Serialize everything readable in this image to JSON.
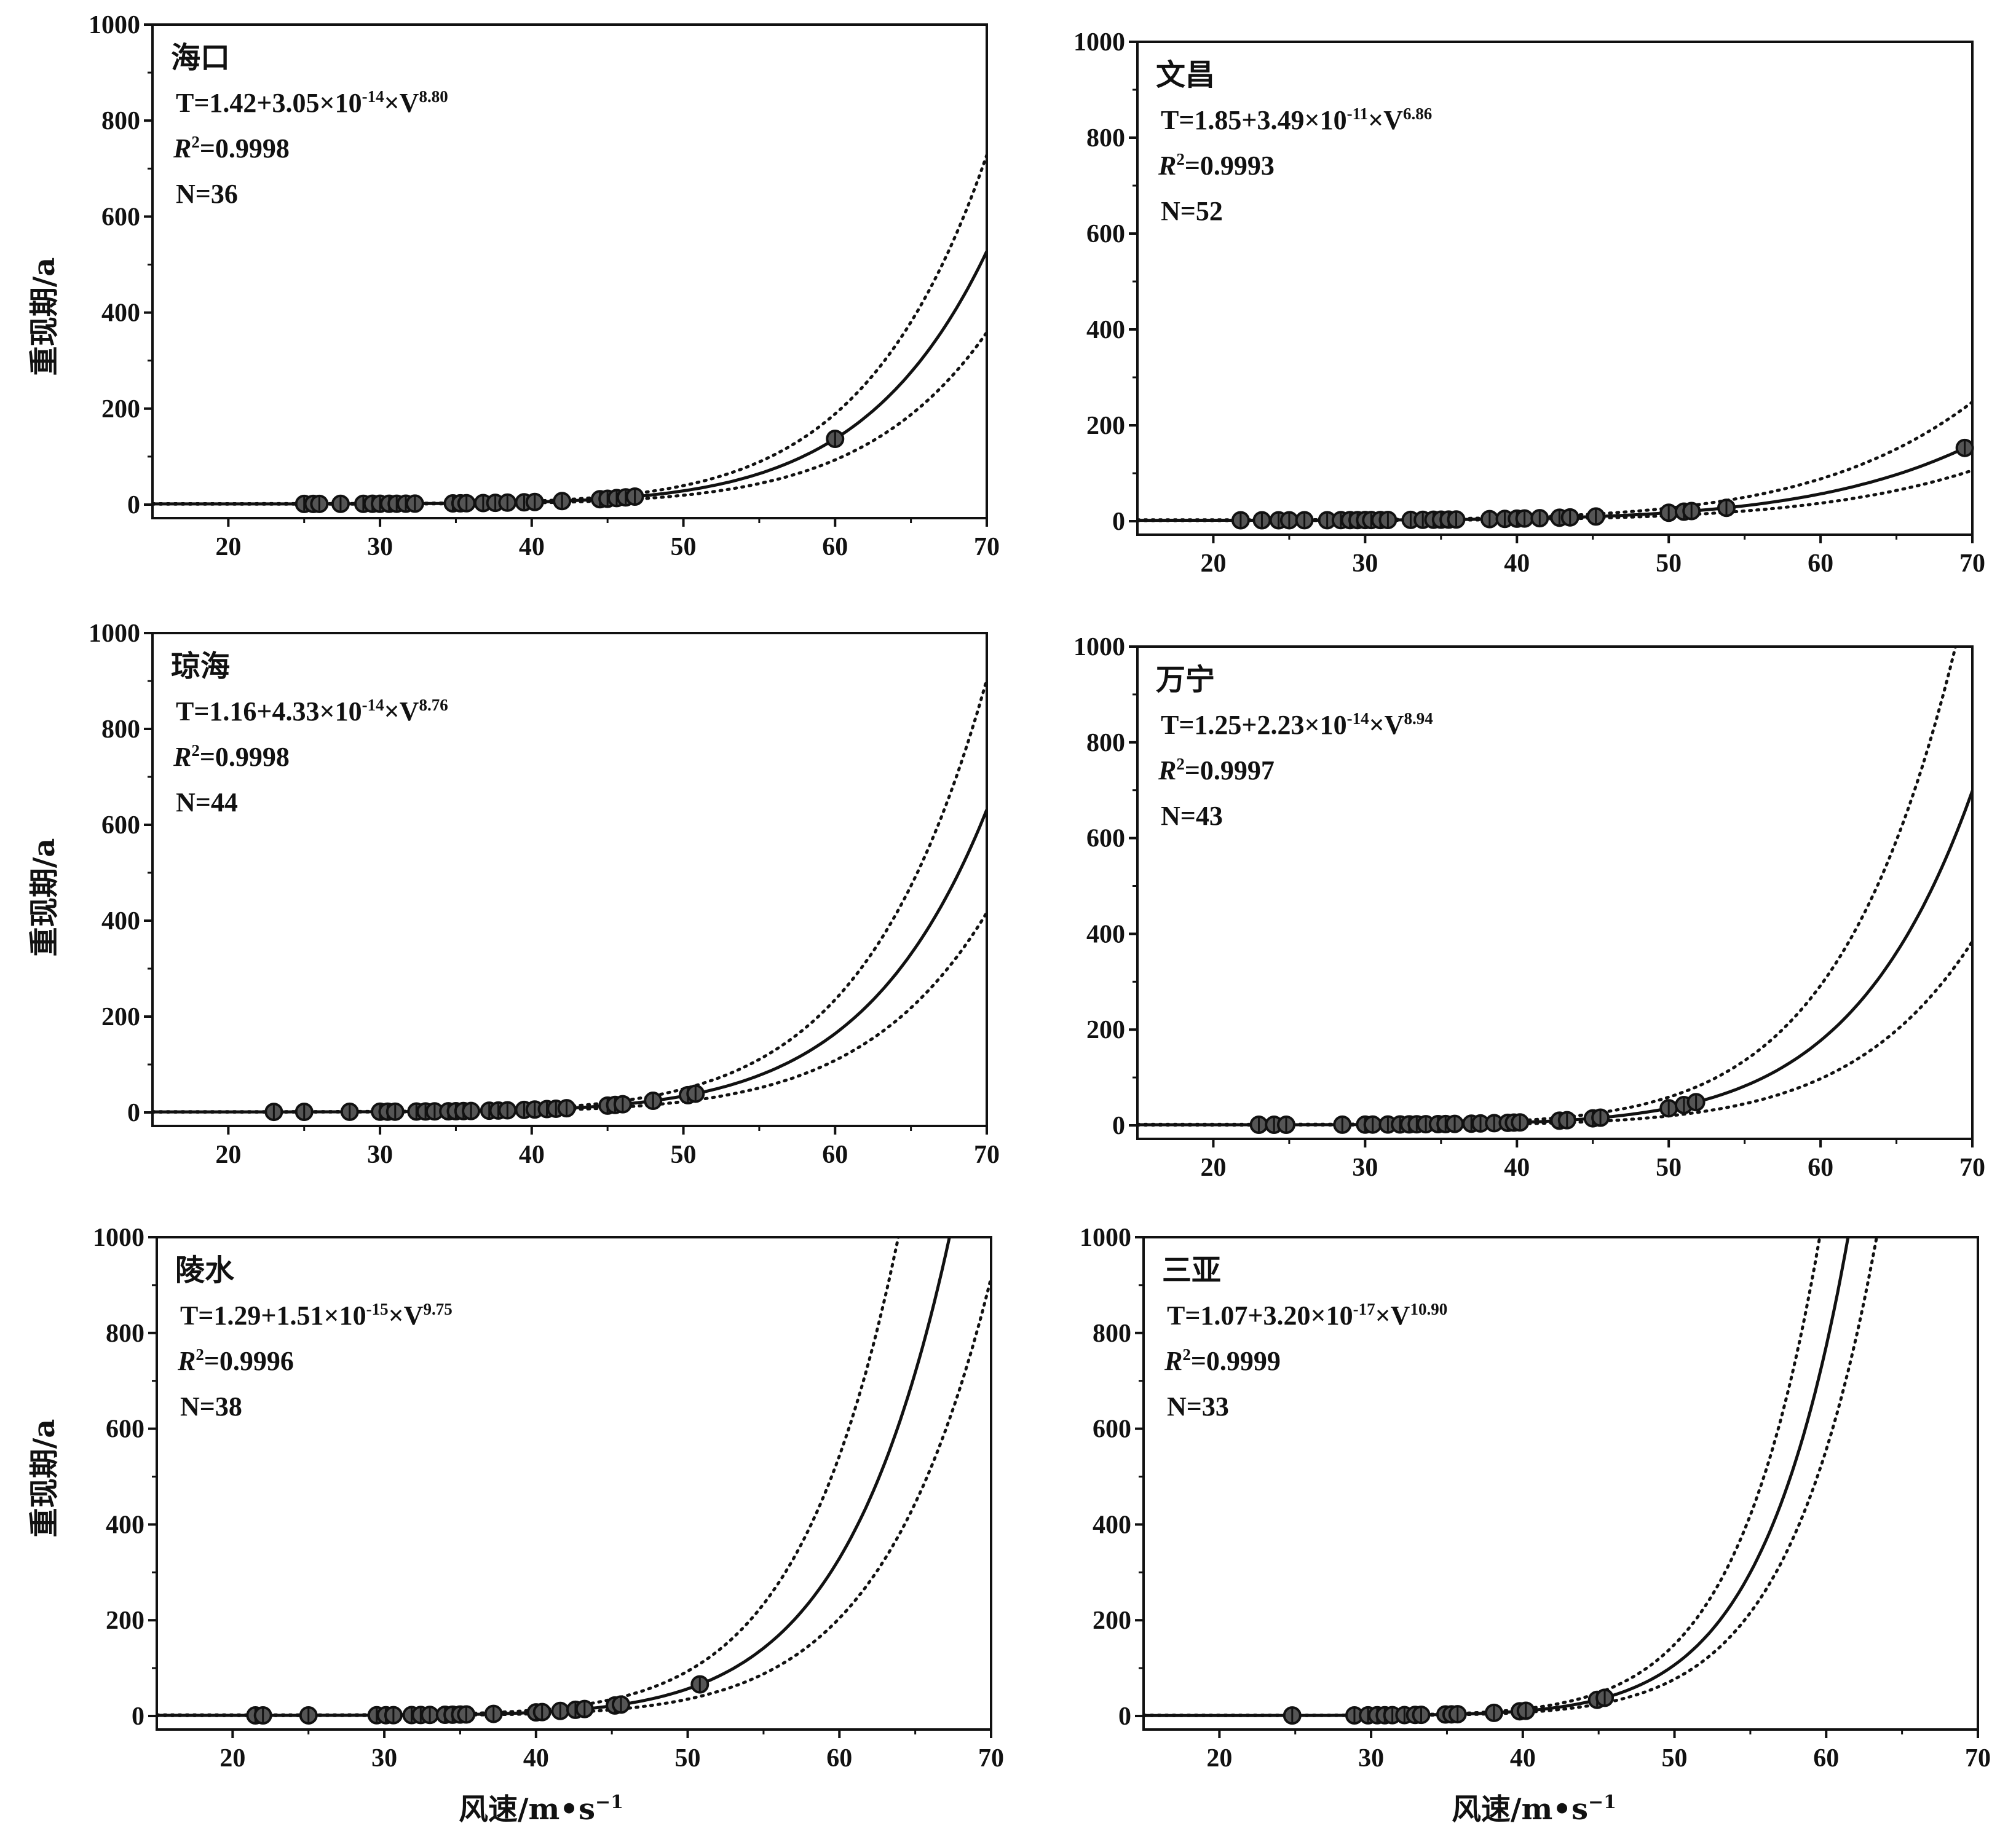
{
  "figure": {
    "ylabel": "重现期/a",
    "xlabel": "风速/m•s",
    "xlabel_exp": "−1"
  },
  "chart_data": [
    {
      "type": "scatter",
      "station": "海口",
      "equation": {
        "base": "T=1.42+3.05×10",
        "exp1": "-14",
        "mid": "×V",
        "exp2": "8.80"
      },
      "r2": {
        "r": "R",
        "sup": "2",
        "value": "=0.9998"
      },
      "n_label": "N=36",
      "fit": {
        "a": 1.42,
        "b": 3.05e-14,
        "c": 8.8,
        "upper_factor": 1.38,
        "lower_factor": 0.68
      },
      "points_x": [
        25,
        25.6,
        26,
        27.4,
        28.9,
        29.5,
        30,
        30.6,
        31.1,
        31.7,
        32.3,
        34.8,
        35.3,
        35.7,
        36.8,
        37.6,
        38.4,
        39.5,
        40.2,
        42,
        44.5,
        45,
        45.6,
        46.2,
        46.8,
        60
      ],
      "xlim": [
        15,
        70
      ],
      "ylim": [
        0,
        1000
      ],
      "xticks": [
        20,
        30,
        40,
        50,
        60,
        70
      ],
      "yticks": [
        0,
        200,
        400,
        600,
        800,
        1000
      ],
      "xlabel": "",
      "ylabel": "重现期/a"
    },
    {
      "type": "scatter",
      "station": "文昌",
      "equation": {
        "base": "T=1.85+3.49×10",
        "exp1": "-11",
        "mid": "×V",
        "exp2": "6.86"
      },
      "r2": {
        "r": "R",
        "sup": "2",
        "value": "=0.9993"
      },
      "n_label": "N=52",
      "fit": {
        "a": 1.85,
        "b": 3.49e-11,
        "c": 6.86,
        "upper_factor": 1.55,
        "lower_factor": 0.66
      },
      "points_x": [
        21.8,
        23.2,
        24.3,
        25,
        26,
        27.5,
        28.4,
        29,
        29.5,
        30,
        30.4,
        31,
        31.5,
        33,
        33.8,
        34.5,
        35,
        35.5,
        36,
        38.2,
        39.2,
        40,
        40.5,
        41.5,
        42.8,
        43.5,
        45.2,
        50,
        51,
        51.5,
        53.8,
        69.5
      ],
      "xlim": [
        15,
        70
      ],
      "ylim": [
        0,
        1000
      ],
      "xticks": [
        20,
        30,
        40,
        50,
        60,
        70
      ],
      "yticks": [
        0,
        200,
        400,
        600,
        800,
        1000
      ],
      "xlabel": "",
      "ylabel": ""
    },
    {
      "type": "scatter",
      "station": "琼海",
      "equation": {
        "base": "T=1.16+4.33×10",
        "exp1": "-14",
        "mid": "×V",
        "exp2": "8.76"
      },
      "r2": {
        "r": "R",
        "sup": "2",
        "value": "=0.9998"
      },
      "n_label": "N=44",
      "fit": {
        "a": 1.16,
        "b": 4.33e-14,
        "c": 8.76,
        "upper_factor": 1.43,
        "lower_factor": 0.66
      },
      "points_x": [
        23,
        25,
        28,
        30,
        30.5,
        31,
        32.4,
        33,
        33.6,
        34.5,
        35,
        35.5,
        36,
        37.2,
        37.8,
        38.4,
        39.5,
        40.2,
        41,
        41.6,
        42.3,
        45,
        45.5,
        46,
        48,
        50.3,
        50.8
      ],
      "xlim": [
        15,
        70
      ],
      "ylim": [
        0,
        1000
      ],
      "xticks": [
        20,
        30,
        40,
        50,
        60,
        70
      ],
      "yticks": [
        0,
        200,
        400,
        600,
        800,
        1000
      ],
      "xlabel": "",
      "ylabel": "重现期/a"
    },
    {
      "type": "scatter",
      "station": "万宁",
      "equation": {
        "base": "T=1.25+2.23×10",
        "exp1": "-14",
        "mid": "×V",
        "exp2": "8.94"
      },
      "r2": {
        "r": "R",
        "sup": "2",
        "value": "=0.9997"
      },
      "n_label": "N=43",
      "fit": {
        "a": 1.25,
        "b": 2.23e-14,
        "c": 8.94,
        "upper_factor": 1.65,
        "lower_factor": 0.55
      },
      "points_x": [
        23,
        24,
        24.8,
        28.5,
        30,
        30.5,
        31.5,
        32.3,
        32.9,
        33.4,
        34,
        34.8,
        35.3,
        35.9,
        37,
        37.6,
        38.5,
        39.4,
        39.8,
        40.2,
        42.8,
        43.3,
        45,
        45.5,
        50,
        51,
        51.8
      ],
      "xlim": [
        15,
        70
      ],
      "ylim": [
        0,
        1000
      ],
      "xticks": [
        20,
        30,
        40,
        50,
        60,
        70
      ],
      "yticks": [
        0,
        200,
        400,
        600,
        800,
        1000
      ],
      "xlabel": "",
      "ylabel": ""
    },
    {
      "type": "scatter",
      "station": "陵水",
      "equation": {
        "base": "T=1.29+1.51×10",
        "exp1": "-15",
        "mid": "×V",
        "exp2": "9.75"
      },
      "r2": {
        "r": "R",
        "sup": "2",
        "value": "=0.9996"
      },
      "n_label": "N=38",
      "fit": {
        "a": 1.29,
        "b": 1.51e-15,
        "c": 9.75,
        "upper_factor": 1.65,
        "lower_factor": 0.62
      },
      "points_x": [
        21.5,
        22,
        25,
        29.5,
        30.1,
        30.6,
        31.8,
        32.4,
        33,
        34,
        34.5,
        35,
        35.4,
        37.2,
        40,
        40.4,
        41.6,
        42.6,
        43.2,
        45.2,
        45.6,
        50.8
      ],
      "xlim": [
        15,
        70
      ],
      "ylim": [
        0,
        1000
      ],
      "xticks": [
        20,
        30,
        40,
        50,
        60,
        70
      ],
      "yticks": [
        0,
        200,
        400,
        600,
        800,
        1000
      ],
      "xlabel": "风速/m•s−1",
      "ylabel": "重现期/a"
    },
    {
      "type": "scatter",
      "station": "三亚",
      "equation": {
        "base": "T=1.07+3.20×10",
        "exp1": "-17",
        "mid": "×V",
        "exp2": "10.90"
      },
      "r2": {
        "r": "R",
        "sup": "2",
        "value": "=0.9999"
      },
      "n_label": "N=33",
      "fit": {
        "a": 1.07,
        "b": 3.2e-17,
        "c": 10.9,
        "upper_factor": 1.4,
        "lower_factor": 0.72
      },
      "points_x": [
        24.8,
        28.9,
        29.8,
        30.4,
        30.9,
        31.4,
        32.2,
        32.9,
        33.3,
        34.9,
        35.3,
        35.7,
        38.1,
        39.8,
        40.2,
        44.9,
        45.4
      ],
      "xlim": [
        15,
        70
      ],
      "ylim": [
        0,
        1000
      ],
      "xticks": [
        20,
        30,
        40,
        50,
        60,
        70
      ],
      "yticks": [
        0,
        200,
        400,
        600,
        800,
        1000
      ],
      "xlabel": "风速/m•s−1",
      "ylabel": ""
    }
  ]
}
